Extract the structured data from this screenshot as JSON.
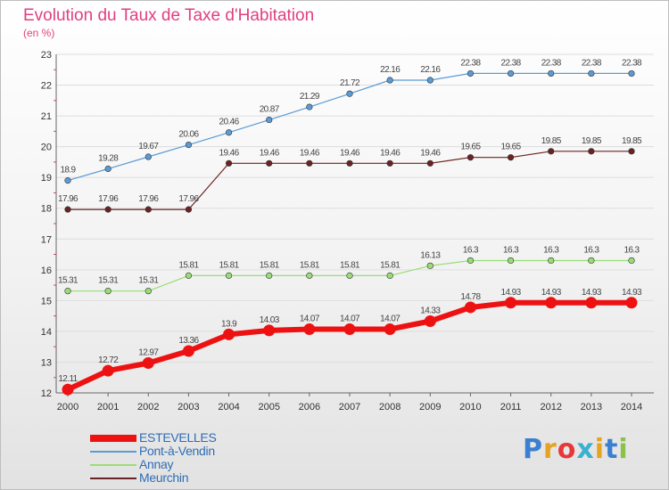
{
  "page_title": "Evolution du Taux de Taxe d'Habitation",
  "unit_label": "(en %)",
  "logo_text": "Proxiti",
  "colors": {
    "title": "#e0407f",
    "ESTEVELLES": "#ee1111",
    "Pont-à-Vendin": "#5b9bd5",
    "Annay": "#99dd77",
    "Meurchin": "#6b2222",
    "legend_text": "#2e6db4",
    "grid": "#dddddd"
  },
  "chart_data": {
    "type": "line",
    "title": "Evolution du Taux de Taxe d'Habitation",
    "ylabel": "(en %)",
    "xlabel": "",
    "ylim": [
      12,
      23
    ],
    "yticks": [
      12,
      13,
      14,
      15,
      16,
      17,
      18,
      19,
      20,
      21,
      22,
      23
    ],
    "x": [
      "2000",
      "2001",
      "2002",
      "2003",
      "2004",
      "2005",
      "2006",
      "2007",
      "2008",
      "2009",
      "2010",
      "2011",
      "2012",
      "2013",
      "2014"
    ],
    "grid": "horizontal",
    "legend_position": "bottom-left",
    "series": [
      {
        "name": "ESTEVELLES",
        "values": [
          12.11,
          12.72,
          12.97,
          13.36,
          13.9,
          14.03,
          14.07,
          14.07,
          14.07,
          14.33,
          14.78,
          14.93,
          14.93,
          14.93,
          14.93
        ]
      },
      {
        "name": "Pont-à-Vendin",
        "values": [
          18.9,
          19.28,
          19.67,
          20.06,
          20.46,
          20.87,
          21.29,
          21.72,
          22.16,
          22.16,
          22.38,
          22.38,
          22.38,
          22.38,
          22.38
        ]
      },
      {
        "name": "Annay",
        "values": [
          15.31,
          15.31,
          15.31,
          15.81,
          15.81,
          15.81,
          15.81,
          15.81,
          15.81,
          16.13,
          16.3,
          16.3,
          16.3,
          16.3,
          16.3
        ]
      },
      {
        "name": "Meurchin",
        "values": [
          17.96,
          17.96,
          17.96,
          17.96,
          19.46,
          19.46,
          19.46,
          19.46,
          19.46,
          19.46,
          19.65,
          19.65,
          19.85,
          19.85,
          19.85
        ]
      }
    ]
  }
}
